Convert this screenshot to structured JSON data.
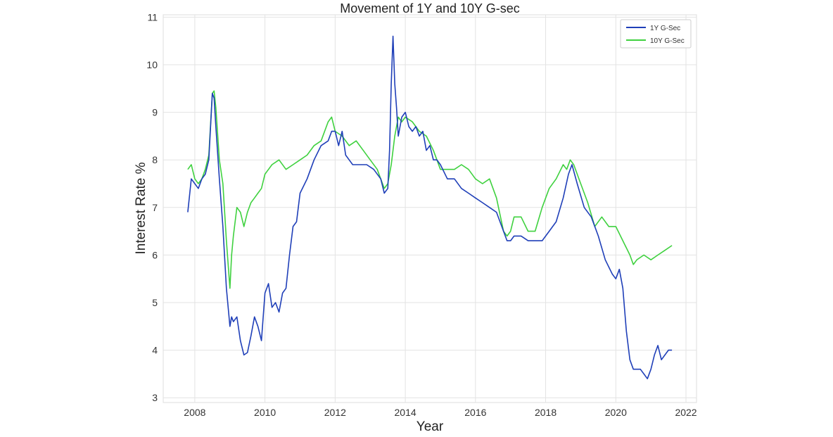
{
  "chart_data": {
    "type": "line",
    "title": "Movement of 1Y and 10Y G-sec",
    "xlabel": "Year",
    "ylabel": "Interest Rate %",
    "xlim": [
      2007.1,
      2022.3
    ],
    "ylim": [
      2.9,
      11.05
    ],
    "grid": true,
    "legend_position": "top-right",
    "x_ticks": [
      2008,
      2010,
      2012,
      2014,
      2016,
      2018,
      2020,
      2022
    ],
    "y_ticks": [
      3,
      4,
      5,
      6,
      7,
      8,
      9,
      10,
      11
    ],
    "series": [
      {
        "name": "1Y G-Sec",
        "color": "#1f3fb8",
        "x": [
          2007.8,
          2007.9,
          2008.0,
          2008.1,
          2008.2,
          2008.3,
          2008.4,
          2008.5,
          2008.55,
          2008.6,
          2008.7,
          2008.8,
          2008.9,
          2009.0,
          2009.05,
          2009.1,
          2009.2,
          2009.3,
          2009.4,
          2009.5,
          2009.6,
          2009.7,
          2009.8,
          2009.9,
          2010.0,
          2010.1,
          2010.2,
          2010.3,
          2010.4,
          2010.5,
          2010.6,
          2010.7,
          2010.8,
          2010.9,
          2011.0,
          2011.2,
          2011.4,
          2011.6,
          2011.8,
          2011.9,
          2012.0,
          2012.1,
          2012.2,
          2012.3,
          2012.4,
          2012.5,
          2012.7,
          2012.9,
          2013.1,
          2013.3,
          2013.4,
          2013.5,
          2013.55,
          2013.6,
          2013.65,
          2013.7,
          2013.75,
          2013.8,
          2013.9,
          2014.0,
          2014.1,
          2014.2,
          2014.3,
          2014.4,
          2014.5,
          2014.6,
          2014.7,
          2014.8,
          2014.9,
          2015.0,
          2015.2,
          2015.4,
          2015.6,
          2015.8,
          2016.0,
          2016.2,
          2016.4,
          2016.6,
          2016.8,
          2016.9,
          2017.0,
          2017.1,
          2017.3,
          2017.5,
          2017.7,
          2017.9,
          2018.1,
          2018.3,
          2018.5,
          2018.65,
          2018.75,
          2018.9,
          2019.1,
          2019.3,
          2019.5,
          2019.7,
          2019.9,
          2020.0,
          2020.1,
          2020.2,
          2020.3,
          2020.4,
          2020.5,
          2020.6,
          2020.7,
          2020.8,
          2020.9,
          2021.0,
          2021.1,
          2021.2,
          2021.3,
          2021.4,
          2021.5,
          2021.6
        ],
        "values": [
          6.9,
          7.6,
          7.5,
          7.4,
          7.6,
          7.7,
          8.0,
          9.4,
          9.3,
          8.7,
          7.6,
          6.6,
          5.3,
          4.5,
          4.7,
          4.6,
          4.7,
          4.2,
          3.9,
          3.95,
          4.3,
          4.7,
          4.5,
          4.2,
          5.2,
          5.4,
          4.9,
          5.0,
          4.8,
          5.2,
          5.3,
          6.0,
          6.6,
          6.7,
          7.3,
          7.6,
          8.0,
          8.3,
          8.4,
          8.6,
          8.6,
          8.3,
          8.6,
          8.1,
          8.0,
          7.9,
          7.9,
          7.9,
          7.8,
          7.6,
          7.3,
          7.4,
          8.2,
          9.6,
          10.6,
          9.6,
          9.1,
          8.5,
          8.9,
          9.0,
          8.7,
          8.6,
          8.7,
          8.5,
          8.6,
          8.2,
          8.3,
          8.0,
          8.0,
          7.9,
          7.6,
          7.6,
          7.4,
          7.3,
          7.2,
          7.1,
          7.0,
          6.9,
          6.5,
          6.3,
          6.3,
          6.4,
          6.4,
          6.3,
          6.3,
          6.3,
          6.5,
          6.7,
          7.2,
          7.7,
          7.9,
          7.5,
          7.0,
          6.8,
          6.4,
          5.9,
          5.6,
          5.5,
          5.7,
          5.3,
          4.4,
          3.8,
          3.6,
          3.6,
          3.6,
          3.5,
          3.4,
          3.6,
          3.9,
          4.1,
          3.8,
          3.9,
          4.0,
          4.0
        ]
      },
      {
        "name": "10Y G-Sec",
        "color": "#3fd13f",
        "x": [
          2007.8,
          2007.9,
          2008.0,
          2008.1,
          2008.2,
          2008.3,
          2008.4,
          2008.5,
          2008.55,
          2008.6,
          2008.7,
          2008.8,
          2008.9,
          2009.0,
          2009.05,
          2009.1,
          2009.2,
          2009.3,
          2009.4,
          2009.5,
          2009.6,
          2009.7,
          2009.8,
          2009.9,
          2010.0,
          2010.2,
          2010.4,
          2010.6,
          2010.8,
          2011.0,
          2011.2,
          2011.4,
          2011.6,
          2011.8,
          2011.9,
          2012.0,
          2012.2,
          2012.4,
          2012.6,
          2012.8,
          2013.0,
          2013.2,
          2013.4,
          2013.5,
          2013.6,
          2013.7,
          2013.8,
          2013.9,
          2014.0,
          2014.2,
          2014.4,
          2014.6,
          2014.8,
          2015.0,
          2015.2,
          2015.4,
          2015.6,
          2015.8,
          2016.0,
          2016.2,
          2016.4,
          2016.6,
          2016.8,
          2016.9,
          2017.0,
          2017.1,
          2017.3,
          2017.5,
          2017.7,
          2017.9,
          2018.1,
          2018.3,
          2018.5,
          2018.6,
          2018.7,
          2018.8,
          2019.0,
          2019.2,
          2019.4,
          2019.6,
          2019.8,
          2020.0,
          2020.2,
          2020.4,
          2020.5,
          2020.6,
          2020.8,
          2021.0,
          2021.2,
          2021.4,
          2021.6
        ],
        "values": [
          7.8,
          7.9,
          7.6,
          7.5,
          7.6,
          7.8,
          8.1,
          9.4,
          9.45,
          9.1,
          8.0,
          7.5,
          6.3,
          5.3,
          6.0,
          6.4,
          7.0,
          6.9,
          6.6,
          6.9,
          7.1,
          7.2,
          7.3,
          7.4,
          7.7,
          7.9,
          8.0,
          7.8,
          7.9,
          8.0,
          8.1,
          8.3,
          8.4,
          8.8,
          8.9,
          8.6,
          8.5,
          8.3,
          8.4,
          8.2,
          8.0,
          7.8,
          7.4,
          7.5,
          7.9,
          8.5,
          8.9,
          8.8,
          8.9,
          8.8,
          8.6,
          8.5,
          8.2,
          7.8,
          7.8,
          7.8,
          7.9,
          7.8,
          7.6,
          7.5,
          7.6,
          7.2,
          6.5,
          6.4,
          6.5,
          6.8,
          6.8,
          6.5,
          6.5,
          7.0,
          7.4,
          7.6,
          7.9,
          7.8,
          8.0,
          7.9,
          7.5,
          7.1,
          6.6,
          6.8,
          6.6,
          6.6,
          6.3,
          6.0,
          5.8,
          5.9,
          6.0,
          5.9,
          6.0,
          6.1,
          6.2
        ]
      }
    ]
  }
}
